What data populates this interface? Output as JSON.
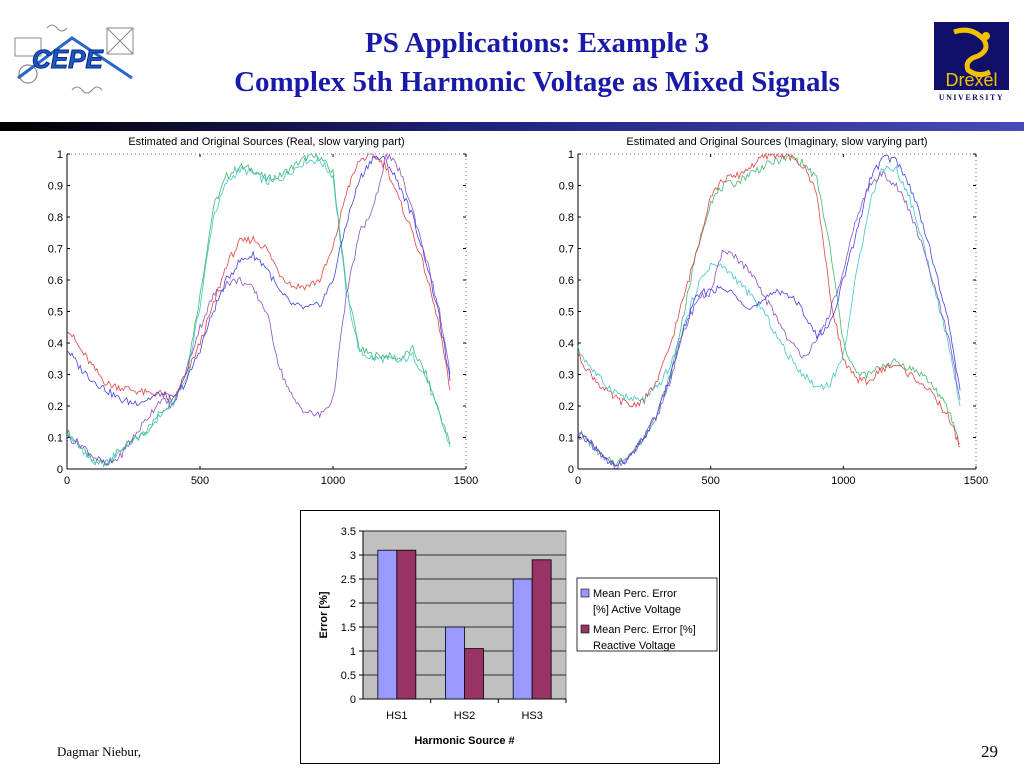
{
  "slide": {
    "title_line1": "PS Applications: Example 3",
    "title_line2": "Complex 5th Harmonic Voltage as Mixed Signals",
    "footer_author": "Dagmar Niebur,",
    "page_number": "29",
    "logo_left_text": "CEPE",
    "logo_right_text": "Drexel",
    "logo_right_sub": "UNIVERSITY"
  },
  "colors": {
    "title": "#1a1aa8",
    "series_red": "#e03030",
    "series_green": "#30b060",
    "series_blue": "#3030e0",
    "series_cyan": "#30c0c0",
    "series_purple": "#8040c0",
    "bar_active": "#9999ff",
    "bar_reactive": "#993366",
    "plot_bg": "#c0c0c0"
  },
  "chart_data": [
    {
      "type": "line",
      "title": "Estimated and Original Sources (Real, slow varying part)",
      "xlim": [
        0,
        1500
      ],
      "ylim": [
        0,
        1
      ],
      "xticks": [
        "0",
        "500",
        "1000",
        "1500"
      ],
      "yticks": [
        "0",
        "0.1",
        "0.2",
        "0.3",
        "0.4",
        "0.5",
        "0.6",
        "0.7",
        "0.8",
        "0.9",
        "1"
      ],
      "x": [
        0,
        50,
        100,
        150,
        200,
        250,
        300,
        350,
        400,
        450,
        500,
        550,
        600,
        650,
        700,
        750,
        800,
        850,
        900,
        950,
        1000,
        1050,
        1100,
        1150,
        1200,
        1250,
        1300,
        1350,
        1400,
        1440
      ],
      "series": [
        {
          "color": "#30b060",
          "values": [
            0.12,
            0.07,
            0.02,
            0.02,
            0.06,
            0.09,
            0.12,
            0.18,
            0.22,
            0.31,
            0.55,
            0.83,
            0.93,
            0.96,
            0.95,
            0.92,
            0.93,
            0.96,
            0.99,
            0.99,
            0.94,
            0.58,
            0.38,
            0.36,
            0.36,
            0.35,
            0.38,
            0.3,
            0.18,
            0.08
          ]
        },
        {
          "color": "#30c0c0",
          "values": [
            0.11,
            0.07,
            0.02,
            0.02,
            0.06,
            0.09,
            0.12,
            0.17,
            0.21,
            0.29,
            0.52,
            0.8,
            0.91,
            0.95,
            0.94,
            0.91,
            0.92,
            0.95,
            0.98,
            0.98,
            0.93,
            0.56,
            0.37,
            0.35,
            0.35,
            0.34,
            0.36,
            0.29,
            0.17,
            0.07
          ]
        },
        {
          "color": "#e03030",
          "values": [
            0.45,
            0.38,
            0.32,
            0.27,
            0.26,
            0.25,
            0.24,
            0.24,
            0.22,
            0.3,
            0.4,
            0.52,
            0.65,
            0.72,
            0.73,
            0.7,
            0.62,
            0.58,
            0.58,
            0.6,
            0.7,
            0.88,
            0.98,
            1.0,
            0.96,
            0.85,
            0.75,
            0.62,
            0.45,
            0.25
          ]
        },
        {
          "color": "#3030e0",
          "values": [
            0.38,
            0.32,
            0.28,
            0.25,
            0.22,
            0.21,
            0.22,
            0.24,
            0.22,
            0.28,
            0.38,
            0.5,
            0.6,
            0.66,
            0.68,
            0.64,
            0.56,
            0.52,
            0.51,
            0.52,
            0.6,
            0.78,
            0.92,
            0.99,
            0.98,
            0.9,
            0.8,
            0.66,
            0.48,
            0.28
          ]
        },
        {
          "color": "#8040c0",
          "values": [
            0.1,
            0.08,
            0.04,
            0.01,
            0.04,
            0.1,
            0.16,
            0.22,
            0.2,
            0.32,
            0.45,
            0.55,
            0.59,
            0.6,
            0.57,
            0.5,
            0.32,
            0.22,
            0.18,
            0.17,
            0.22,
            0.55,
            0.75,
            0.82,
            1.0,
            0.95,
            0.82,
            0.67,
            0.5,
            0.3
          ]
        }
      ]
    },
    {
      "type": "line",
      "title": "Estimated and Original Sources (Imaginary, slow varying part)",
      "xlim": [
        0,
        1500
      ],
      "ylim": [
        0,
        1
      ],
      "xticks": [
        "0",
        "500",
        "1000",
        "1500"
      ],
      "yticks": [
        "0",
        "0.1",
        "0.2",
        "0.3",
        "0.4",
        "0.5",
        "0.6",
        "0.7",
        "0.8",
        "0.9",
        "1"
      ],
      "x": [
        0,
        50,
        100,
        150,
        200,
        250,
        300,
        350,
        400,
        450,
        500,
        550,
        600,
        650,
        700,
        750,
        800,
        850,
        900,
        950,
        1000,
        1050,
        1100,
        1150,
        1200,
        1250,
        1300,
        1350,
        1400,
        1440
      ],
      "series": [
        {
          "color": "#30b060",
          "values": [
            0.12,
            0.08,
            0.03,
            0.02,
            0.05,
            0.1,
            0.18,
            0.3,
            0.5,
            0.7,
            0.85,
            0.9,
            0.91,
            0.94,
            0.96,
            0.98,
            0.99,
            0.97,
            0.92,
            0.7,
            0.4,
            0.3,
            0.3,
            0.33,
            0.34,
            0.32,
            0.3,
            0.25,
            0.18,
            0.08
          ]
        },
        {
          "color": "#e03030",
          "values": [
            0.36,
            0.3,
            0.25,
            0.22,
            0.2,
            0.22,
            0.28,
            0.4,
            0.55,
            0.7,
            0.87,
            0.92,
            0.93,
            0.96,
            0.99,
            1.0,
            0.99,
            0.96,
            0.88,
            0.55,
            0.35,
            0.28,
            0.28,
            0.32,
            0.33,
            0.3,
            0.27,
            0.22,
            0.16,
            0.07
          ]
        },
        {
          "color": "#30c0c0",
          "values": [
            0.38,
            0.32,
            0.27,
            0.24,
            0.22,
            0.22,
            0.26,
            0.33,
            0.45,
            0.58,
            0.65,
            0.64,
            0.6,
            0.55,
            0.5,
            0.42,
            0.35,
            0.3,
            0.26,
            0.27,
            0.36,
            0.62,
            0.85,
            0.96,
            0.95,
            0.86,
            0.72,
            0.55,
            0.38,
            0.2
          ]
        },
        {
          "color": "#3030e0",
          "values": [
            0.11,
            0.08,
            0.03,
            0.01,
            0.04,
            0.1,
            0.18,
            0.3,
            0.45,
            0.55,
            0.57,
            0.57,
            0.55,
            0.51,
            0.53,
            0.57,
            0.55,
            0.5,
            0.42,
            0.46,
            0.6,
            0.75,
            0.92,
            0.99,
            0.98,
            0.9,
            0.78,
            0.62,
            0.45,
            0.25
          ]
        },
        {
          "color": "#8040c0",
          "values": [
            0.11,
            0.08,
            0.03,
            0.01,
            0.04,
            0.1,
            0.17,
            0.29,
            0.44,
            0.54,
            0.56,
            0.7,
            0.67,
            0.62,
            0.55,
            0.48,
            0.4,
            0.36,
            0.4,
            0.5,
            0.62,
            0.8,
            0.9,
            0.94,
            0.9,
            0.82,
            0.7,
            0.56,
            0.4,
            0.22
          ]
        }
      ]
    },
    {
      "type": "bar",
      "categories": [
        "HS1",
        "HS2",
        "HS3"
      ],
      "series": [
        {
          "name": "Mean  Perc. Error [%] Active Voltage",
          "color": "#9999ff",
          "values": [
            3.1,
            1.5,
            2.5
          ]
        },
        {
          "name": "Mean Perc. Error [%] Reactive Voltage",
          "color": "#993366",
          "values": [
            3.1,
            1.05,
            2.9
          ]
        }
      ],
      "xlabel": "Harmonic Source #",
      "ylabel": "Error [%]",
      "ylim": [
        0,
        3.5
      ],
      "yticks": [
        "0",
        "0.5",
        "1",
        "1.5",
        "2",
        "2.5",
        "3",
        "3.5"
      ],
      "grid": true,
      "legend_position": "right"
    }
  ]
}
